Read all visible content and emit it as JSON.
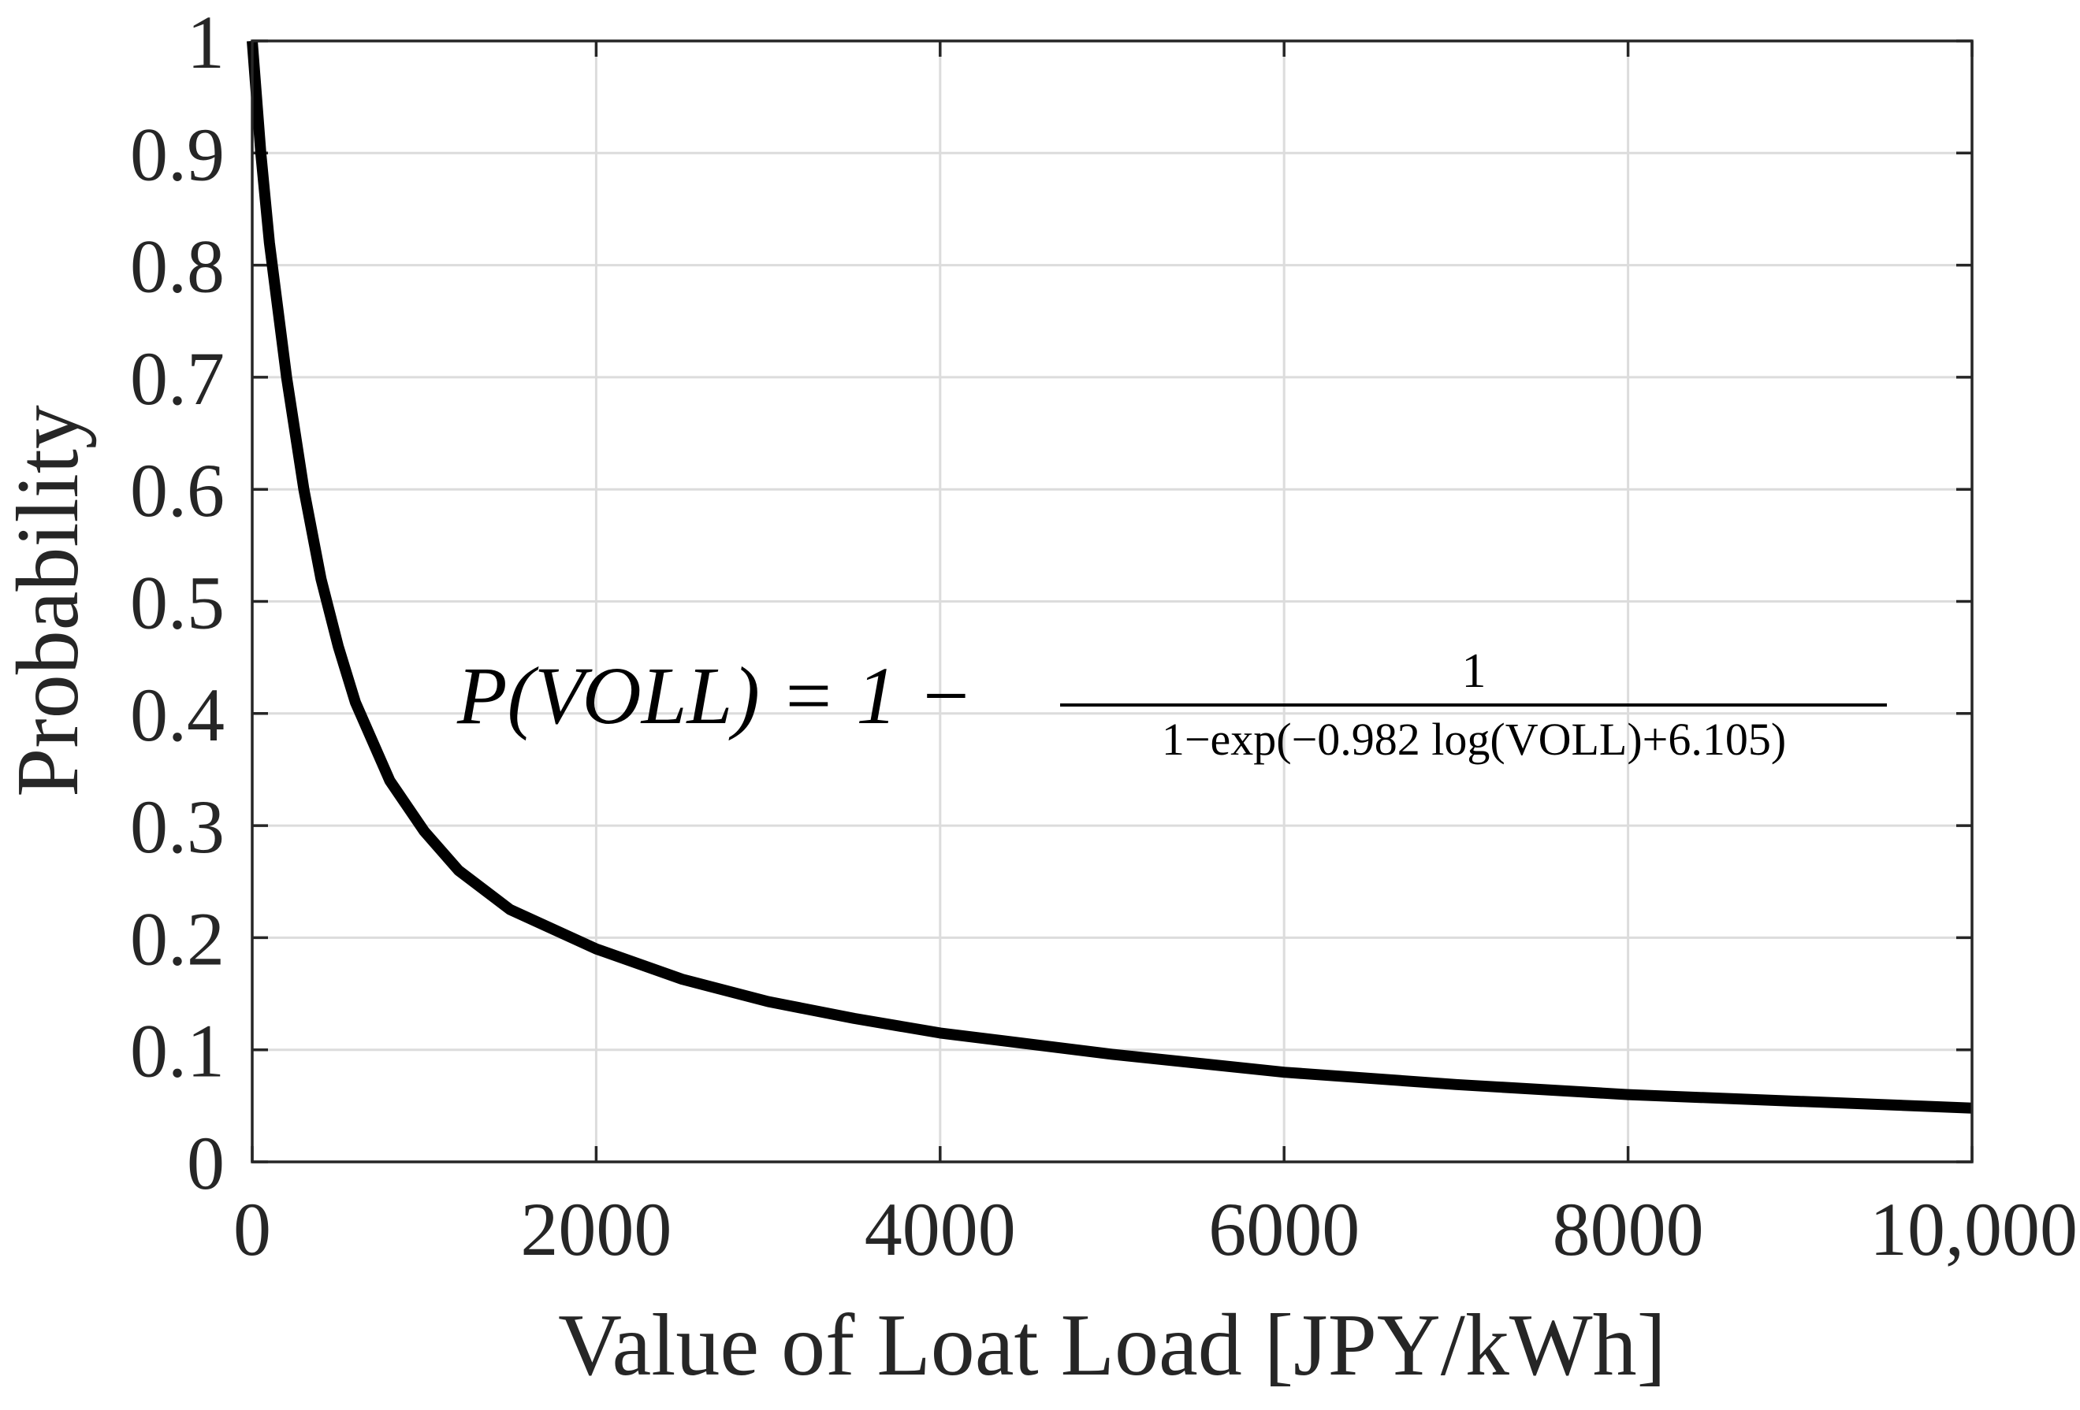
{
  "chart_data": {
    "type": "line",
    "title": "",
    "xlabel": "Value of Loat Load [JPY/kWh]",
    "ylabel": "Probability",
    "xlim": [
      0,
      10000
    ],
    "ylim": [
      0,
      1
    ],
    "grid": true,
    "x_ticks": [
      0,
      2000,
      4000,
      6000,
      8000,
      10000
    ],
    "x_tick_labels": [
      "0",
      "2000",
      "4000",
      "6000",
      "8000",
      "10,000"
    ],
    "y_ticks": [
      0,
      0.1,
      0.2,
      0.3,
      0.4,
      0.5,
      0.6,
      0.7,
      0.8,
      0.9,
      1
    ],
    "y_tick_labels": [
      "0",
      "0.1",
      "0.2",
      "0.3",
      "0.4",
      "0.5",
      "0.6",
      "0.7",
      "0.8",
      "0.9",
      "1"
    ],
    "series": [
      {
        "name": "P(VOLL)",
        "color": "#000000",
        "x": [
          0,
          50,
          100,
          200,
          300,
          400,
          500,
          600,
          800,
          1000,
          1200,
          1500,
          2000,
          2500,
          3000,
          3500,
          4000,
          5000,
          6000,
          7000,
          8000,
          9000,
          10000
        ],
        "values": [
          1.0,
          0.9,
          0.82,
          0.7,
          0.6,
          0.52,
          0.46,
          0.41,
          0.34,
          0.295,
          0.26,
          0.225,
          0.19,
          0.163,
          0.143,
          0.128,
          0.115,
          0.096,
          0.08,
          0.069,
          0.06,
          0.054,
          0.048
        ]
      }
    ],
    "annotation": {
      "lhs": "P(VOLL) = 1 −",
      "numerator": "1",
      "denominator": "1−exp(−0.982 log(VOLL)+6.105)"
    }
  }
}
